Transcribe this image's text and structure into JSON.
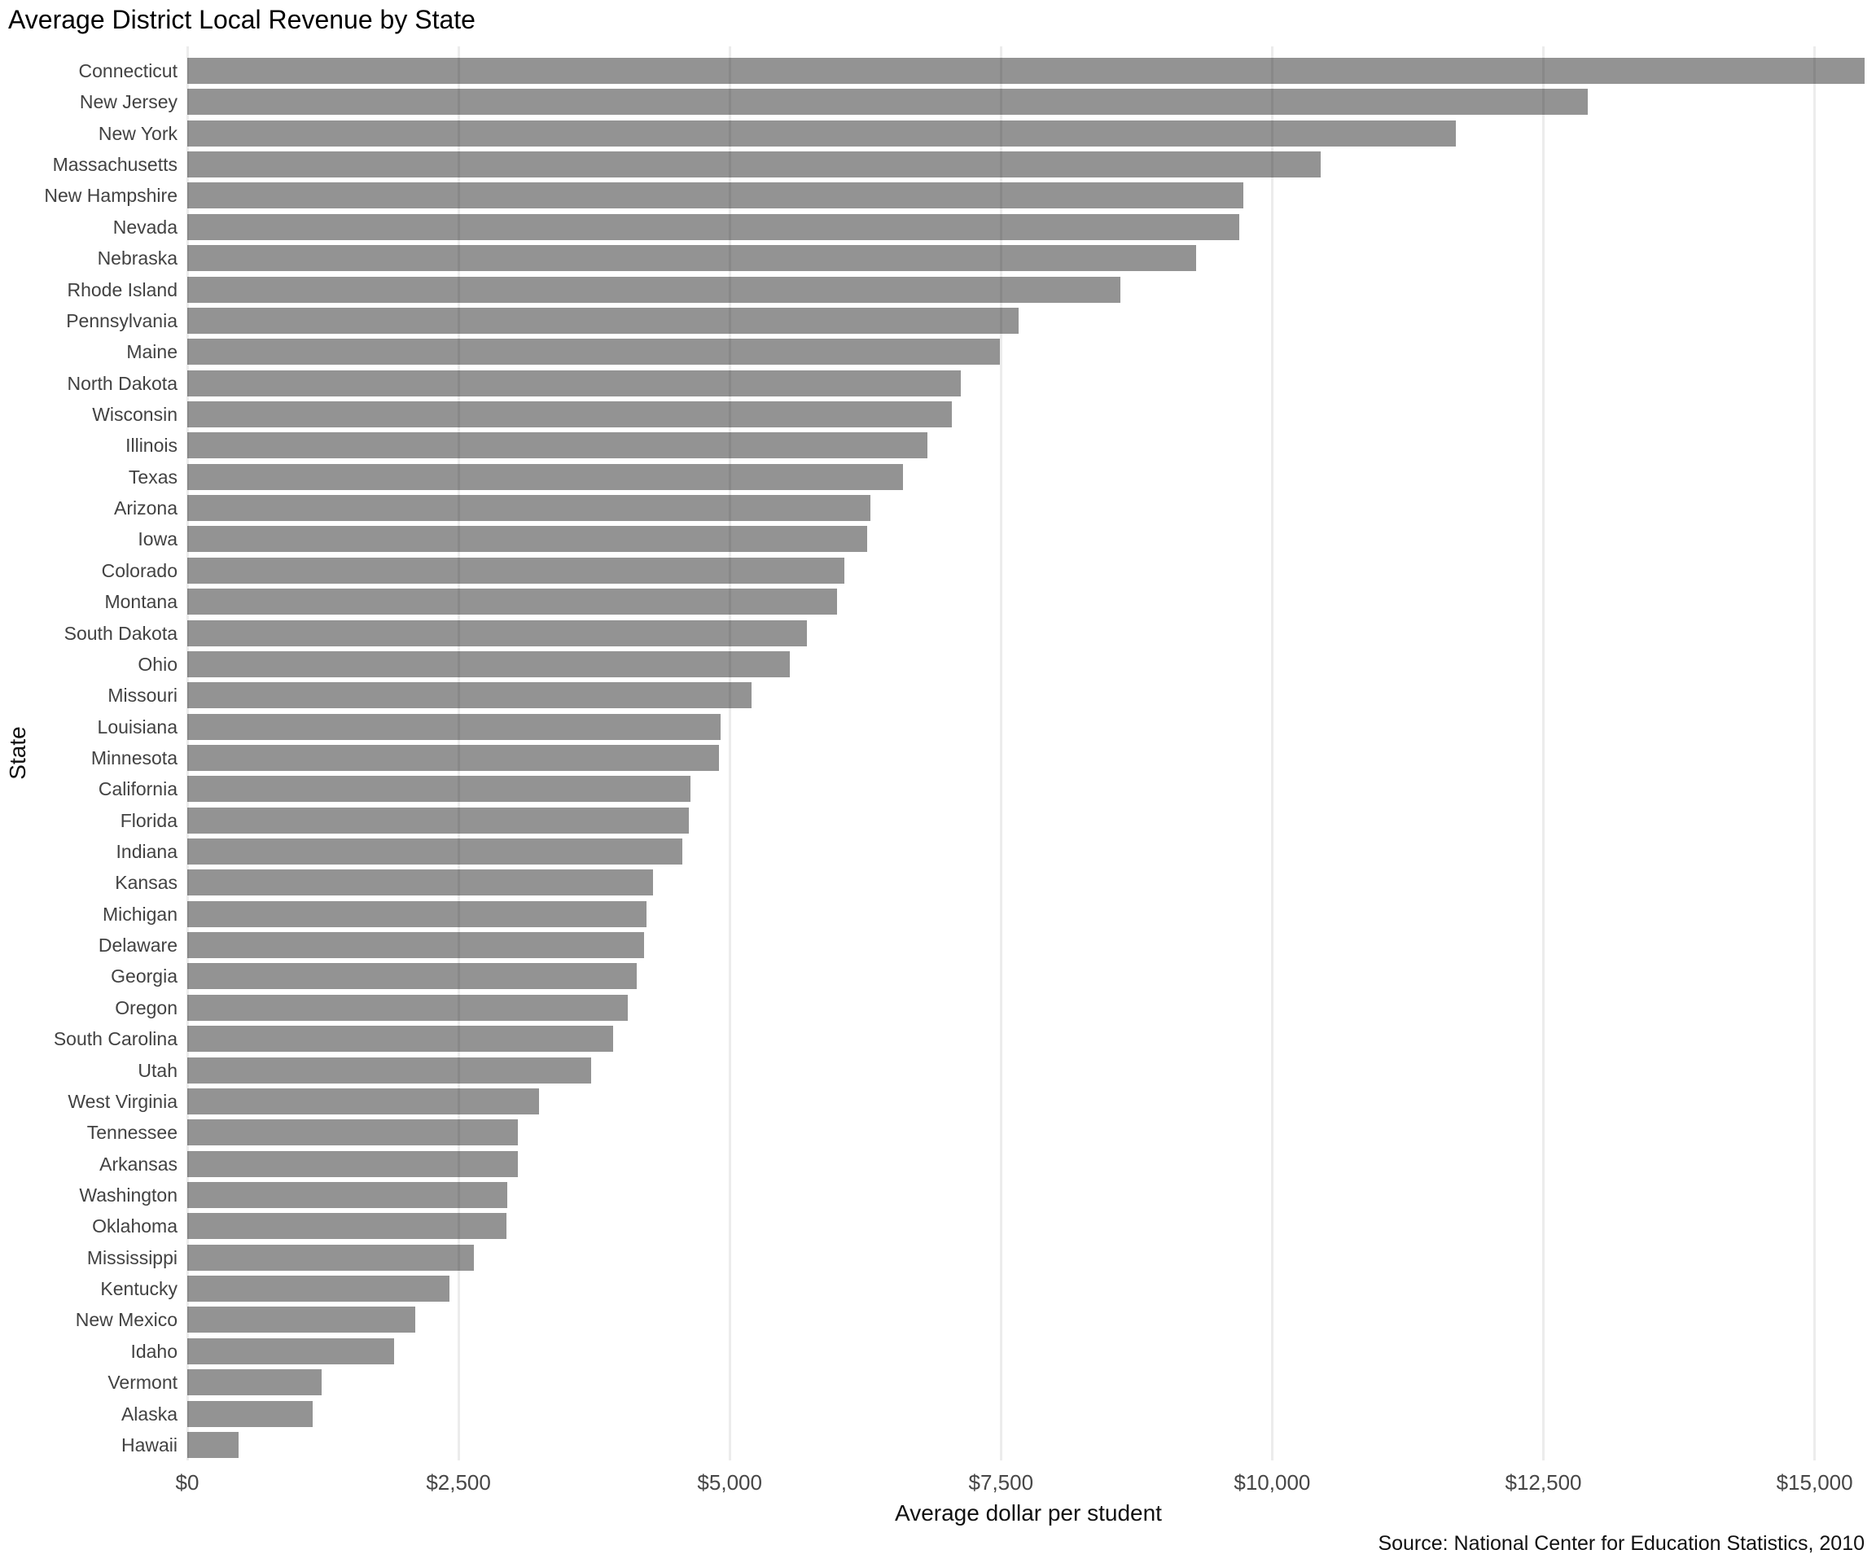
{
  "chart_data": {
    "type": "bar",
    "orientation": "horizontal",
    "title": "Average District Local Revenue by State",
    "xlabel": "Average dollar per student",
    "ylabel": "State",
    "source": "Source: National Center for Education Statistics, 2010",
    "xlim": [
      0,
      15000
    ],
    "grid": true,
    "legend": false,
    "x_ticks": [
      {
        "value": 0,
        "label": "$0"
      },
      {
        "value": 2500,
        "label": "$2,500"
      },
      {
        "value": 5000,
        "label": "$5,000"
      },
      {
        "value": 7500,
        "label": "$7,500"
      },
      {
        "value": 10000,
        "label": "$10,000"
      },
      {
        "value": 12500,
        "label": "$12,500"
      },
      {
        "value": 15000,
        "label": "$15,000"
      }
    ],
    "categories": [
      "Connecticut",
      "New Jersey",
      "New York",
      "Massachusetts",
      "New Hampshire",
      "Nevada",
      "Nebraska",
      "Rhode Island",
      "Pennsylvania",
      "Maine",
      "North Dakota",
      "Wisconsin",
      "Illinois",
      "Texas",
      "Arizona",
      "Iowa",
      "Colorado",
      "Montana",
      "South Dakota",
      "Ohio",
      "Missouri",
      "Louisiana",
      "Minnesota",
      "California",
      "Florida",
      "Indiana",
      "Kansas",
      "Michigan",
      "Delaware",
      "Georgia",
      "Oregon",
      "South Carolina",
      "Utah",
      "West Virginia",
      "Tennessee",
      "Arkansas",
      "Washington",
      "Oklahoma",
      "Mississippi",
      "Kentucky",
      "New Mexico",
      "Idaho",
      "Vermont",
      "Alaska",
      "Hawaii"
    ],
    "values": [
      15460,
      12910,
      11695,
      10445,
      9735,
      9700,
      9295,
      8600,
      7665,
      7490,
      7130,
      7045,
      6820,
      6600,
      6295,
      6270,
      6055,
      5990,
      5710,
      5555,
      5200,
      4915,
      4900,
      4640,
      4620,
      4560,
      4290,
      4235,
      4210,
      4145,
      4060,
      3925,
      3725,
      3245,
      3050,
      3045,
      2950,
      2945,
      2645,
      2415,
      2100,
      1905,
      1240,
      1155,
      470
    ],
    "colors": {
      "bar": "#939393",
      "gridline_over_white": "#ececec",
      "axis_text": "#474747",
      "title_text": "#000000"
    }
  }
}
